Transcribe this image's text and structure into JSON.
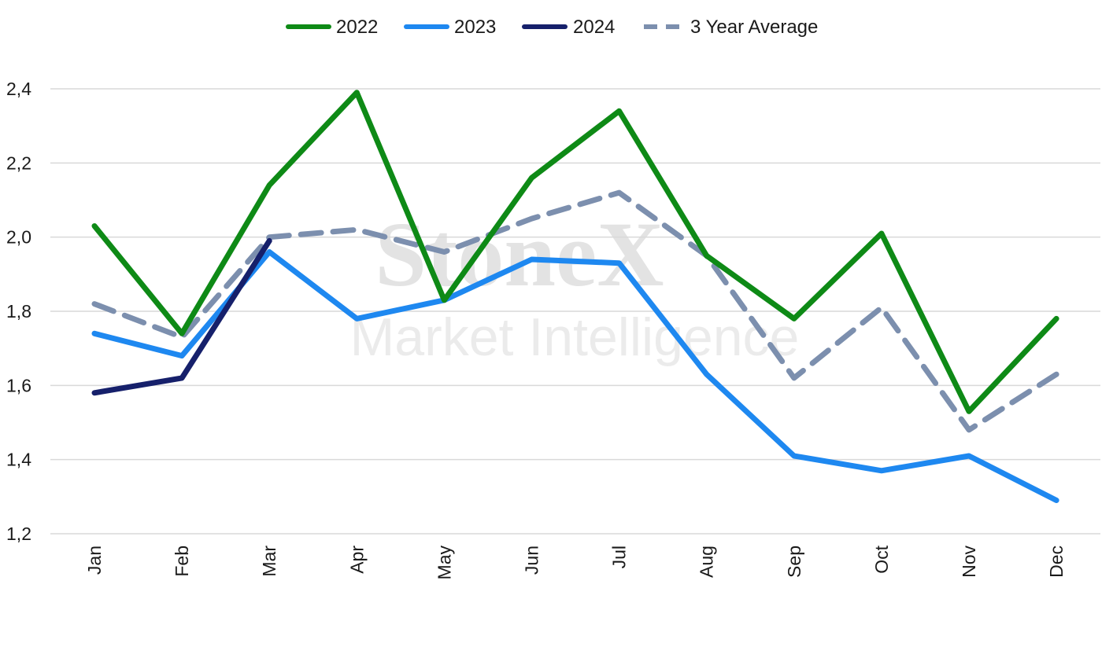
{
  "chart_data": {
    "type": "line",
    "categories": [
      "Jan",
      "Feb",
      "Mar",
      "Apr",
      "May",
      "Jun",
      "Jul",
      "Aug",
      "Sep",
      "Oct",
      "Nov",
      "Dec"
    ],
    "ylim": [
      1.2,
      2.4
    ],
    "yticks": [
      "1,2",
      "1,4",
      "1,6",
      "1,8",
      "2,0",
      "2,2",
      "2,4"
    ],
    "ytick_values": [
      1.2,
      1.4,
      1.6,
      1.8,
      2.0,
      2.2,
      2.4
    ],
    "grid": "horizontal",
    "legend_position": "top-center",
    "watermark": {
      "main": "StoneX",
      "sub": "Market Intelligence"
    },
    "series": [
      {
        "name": "2022",
        "color": "#0e8a16",
        "dash": "solid",
        "values": [
          2.03,
          1.74,
          2.14,
          2.39,
          1.83,
          2.16,
          2.34,
          1.95,
          1.78,
          2.01,
          1.53,
          1.78
        ]
      },
      {
        "name": "2023",
        "color": "#1e88f0",
        "dash": "solid",
        "values": [
          1.74,
          1.68,
          1.96,
          1.78,
          1.83,
          1.94,
          1.93,
          1.63,
          1.41,
          1.37,
          1.41,
          1.29
        ]
      },
      {
        "name": "2024",
        "color": "#16206b",
        "dash": "solid",
        "values": [
          1.58,
          1.62,
          1.99,
          null,
          null,
          null,
          null,
          null,
          null,
          null,
          null,
          null
        ]
      },
      {
        "name": "3 Year Average",
        "color": "#7c8fae",
        "dash": "dashed",
        "values": [
          1.82,
          1.73,
          2.0,
          2.02,
          1.96,
          2.05,
          2.12,
          1.95,
          1.62,
          1.81,
          1.48,
          1.63
        ]
      }
    ]
  }
}
